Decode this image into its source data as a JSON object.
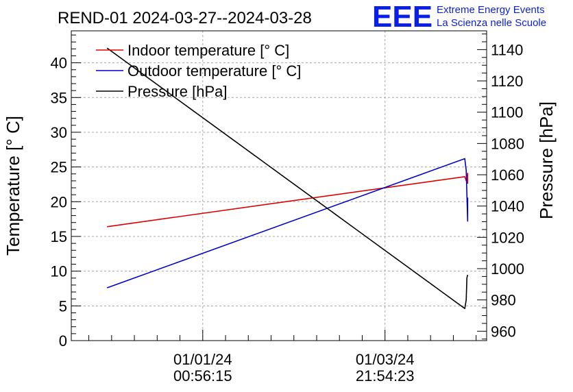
{
  "chart_data": {
    "type": "line",
    "title": "REND-01 2024-03-27--2024-03-28",
    "logo": {
      "mark": "EEE",
      "line1": "Extreme Energy Events",
      "line2": "La Scienza nelle Scuole"
    },
    "ylabel": "Temperature [° C]",
    "y2label": "Pressure [hPa]",
    "ylim": [
      0,
      44.6
    ],
    "y2lim": [
      954,
      1152
    ],
    "yticks": [
      0,
      5,
      10,
      15,
      20,
      25,
      30,
      35,
      40
    ],
    "y2ticks": [
      960,
      980,
      1000,
      1020,
      1040,
      1060,
      1080,
      1100,
      1120,
      1140
    ],
    "xlim": [
      0,
      1
    ],
    "xticks": [
      {
        "pos": 0.3165,
        "date": "01/01/24",
        "time": "00:56:15"
      },
      {
        "pos": 0.7553,
        "date": "01/03/24",
        "time": "21:54:23"
      }
    ],
    "grid": true,
    "legend_position": "top-left",
    "series": [
      {
        "name": "Indoor temperature [° C]",
        "axis": "left",
        "color": "#dd0000",
        "x": [
          0.0861,
          0.9473,
          0.9508,
          0.9543,
          0.9543
        ],
        "y": [
          16.4,
          23.6,
          23.0,
          24.1,
          22.6
        ]
      },
      {
        "name": "Outdoor temperature [° C]",
        "axis": "left",
        "color": "#0000cc",
        "x": [
          0.0861,
          0.9473,
          0.9508,
          0.9543,
          0.9543
        ],
        "y": [
          7.6,
          26.2,
          24.5,
          17.2,
          20.6
        ]
      },
      {
        "name": "Pressure [hPa]",
        "axis": "right",
        "color": "#000000",
        "x": [
          0.0861,
          0.9473,
          0.9508,
          0.9525,
          0.9543
        ],
        "y": [
          1141,
          974.5,
          980,
          994,
          996
        ]
      }
    ]
  }
}
